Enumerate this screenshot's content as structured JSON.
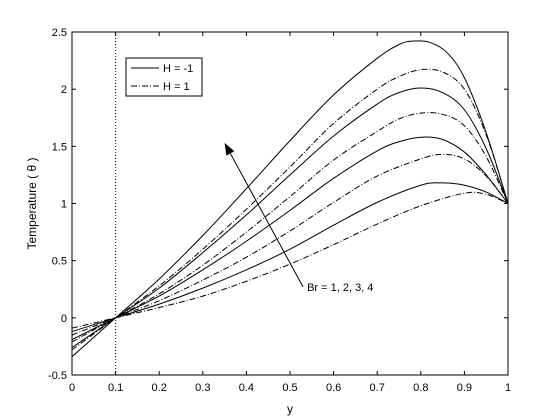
{
  "chart_data": {
    "type": "line",
    "title": "",
    "xlabel": "y",
    "ylabel": "Temperature ( θ )",
    "xlim": [
      0,
      1
    ],
    "ylim": [
      -0.5,
      2.5
    ],
    "xticks": [
      0,
      0.1,
      0.2,
      0.3,
      0.4,
      0.5,
      0.6,
      0.7,
      0.8,
      0.9,
      1
    ],
    "yticks": [
      -0.5,
      0,
      0.5,
      1,
      1.5,
      2,
      2.5
    ],
    "xtick_labels": [
      "0",
      "0.1",
      "0.2",
      "0.3",
      "0.4",
      "0.5",
      "0.6",
      "0.7",
      "0.8",
      "0.9",
      "1"
    ],
    "ytick_labels": [
      "-0.5",
      "0",
      "0.5",
      "1",
      "1.5",
      "2",
      "2.5"
    ],
    "grid": false,
    "legend_position": "top-left",
    "legend": [
      {
        "label": "H = -1",
        "style": "solid"
      },
      {
        "label": "H = 1",
        "style": "dashdot"
      }
    ],
    "reference_line": {
      "x": 0.1,
      "style": "dotted"
    },
    "annotation": {
      "text": "Br = 1, 2, 3, 4",
      "arrow_from": [
        0.53,
        0.27
      ],
      "arrow_to": [
        0.35,
        1.53
      ]
    },
    "series": [
      {
        "Br": 1,
        "style": "solid",
        "x": [
          0,
          0.1,
          0.2,
          0.3,
          0.4,
          0.5,
          0.6,
          0.7,
          0.8,
          0.85,
          0.9,
          0.95,
          1
        ],
        "y": [
          -0.12,
          0,
          0.12,
          0.26,
          0.42,
          0.6,
          0.81,
          1.01,
          1.16,
          1.18,
          1.16,
          1.1,
          1.0
        ]
      },
      {
        "Br": 1,
        "style": "dashdot",
        "x": [
          0,
          0.1,
          0.2,
          0.3,
          0.4,
          0.5,
          0.6,
          0.7,
          0.8,
          0.9,
          0.95,
          1
        ],
        "y": [
          -0.09,
          0,
          0.09,
          0.19,
          0.32,
          0.47,
          0.64,
          0.82,
          0.98,
          1.09,
          1.08,
          1.0
        ]
      },
      {
        "Br": 2,
        "style": "solid",
        "x": [
          0,
          0.1,
          0.2,
          0.3,
          0.4,
          0.5,
          0.6,
          0.7,
          0.75,
          0.8,
          0.85,
          0.9,
          0.95,
          1
        ],
        "y": [
          -0.19,
          0,
          0.19,
          0.42,
          0.67,
          0.94,
          1.22,
          1.46,
          1.54,
          1.58,
          1.56,
          1.45,
          1.25,
          1.0
        ]
      },
      {
        "Br": 2,
        "style": "dashdot",
        "x": [
          0,
          0.1,
          0.2,
          0.3,
          0.4,
          0.5,
          0.6,
          0.7,
          0.8,
          0.85,
          0.9,
          0.95,
          1
        ],
        "y": [
          -0.15,
          0,
          0.15,
          0.33,
          0.53,
          0.76,
          1.01,
          1.24,
          1.39,
          1.43,
          1.39,
          1.24,
          1.0
        ]
      },
      {
        "Br": 3,
        "style": "solid",
        "x": [
          0,
          0.1,
          0.2,
          0.3,
          0.4,
          0.5,
          0.6,
          0.7,
          0.75,
          0.8,
          0.85,
          0.9,
          0.95,
          1
        ],
        "y": [
          -0.26,
          0,
          0.26,
          0.57,
          0.9,
          1.25,
          1.59,
          1.87,
          1.97,
          2.01,
          1.97,
          1.82,
          1.48,
          1.0
        ]
      },
      {
        "Br": 3,
        "style": "dashdot",
        "x": [
          0,
          0.1,
          0.2,
          0.3,
          0.4,
          0.5,
          0.6,
          0.7,
          0.75,
          0.8,
          0.85,
          0.9,
          0.95,
          1
        ],
        "y": [
          -0.21,
          0,
          0.21,
          0.46,
          0.75,
          1.06,
          1.38,
          1.63,
          1.74,
          1.79,
          1.78,
          1.68,
          1.41,
          1.0
        ]
      },
      {
        "Br": 4,
        "style": "solid",
        "x": [
          0,
          0.1,
          0.2,
          0.3,
          0.4,
          0.5,
          0.6,
          0.7,
          0.75,
          0.78,
          0.82,
          0.86,
          0.9,
          0.95,
          1
        ],
        "y": [
          -0.34,
          0,
          0.34,
          0.72,
          1.13,
          1.55,
          1.95,
          2.27,
          2.39,
          2.42,
          2.41,
          2.32,
          2.1,
          1.62,
          1.0
        ]
      },
      {
        "Br": 4,
        "style": "dashdot",
        "x": [
          0,
          0.1,
          0.2,
          0.3,
          0.4,
          0.5,
          0.6,
          0.7,
          0.75,
          0.8,
          0.85,
          0.9,
          0.95,
          1
        ],
        "y": [
          -0.28,
          0,
          0.28,
          0.6,
          0.95,
          1.32,
          1.7,
          2.0,
          2.11,
          2.17,
          2.15,
          2.0,
          1.6,
          1.0
        ]
      }
    ]
  }
}
